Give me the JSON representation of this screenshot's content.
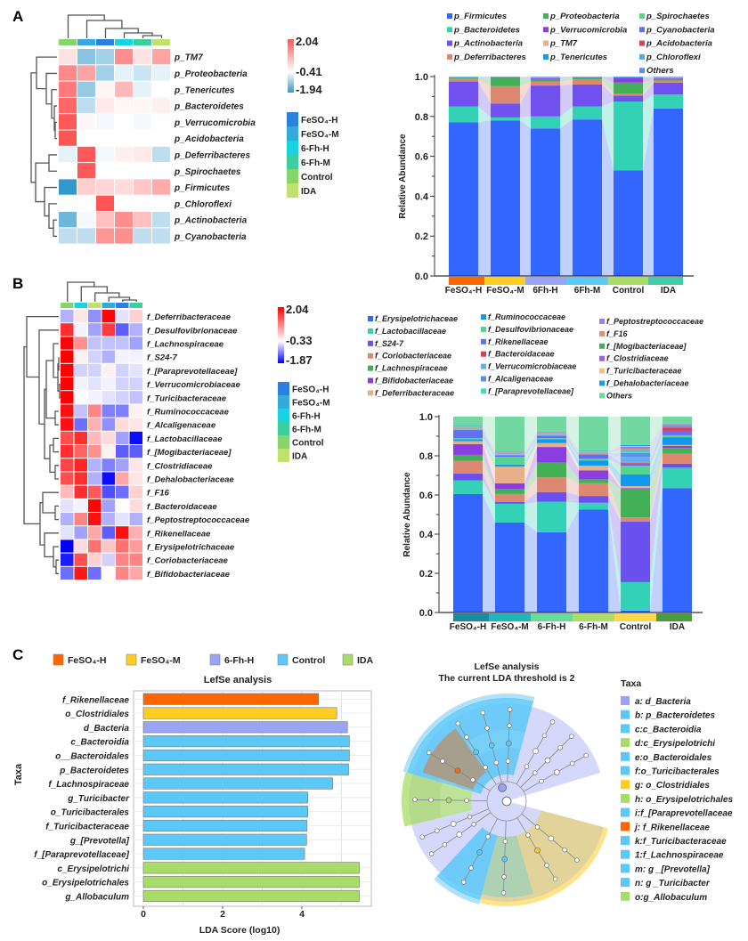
{
  "panel_labels": [
    "A",
    "B",
    "C"
  ],
  "chart_data": [
    {
      "type": "heatmap",
      "panel": "A",
      "columns": [
        "Control",
        "FeSO₄-M",
        "FeSO₄-H",
        "6-Fh-H",
        "6-Fh-M",
        "IDA"
      ],
      "column_colors": [
        "#86d46c",
        "#33aadd",
        "#2b80e0",
        "#18d3e0",
        "#3acf9c",
        "#c1e26a"
      ],
      "rows": [
        "p_TM7",
        "p_Proteobacteria",
        "p_Tenericutes",
        "p_Bacteroidetes",
        "p_Verrucomicrobia",
        "p_Acidobacteria",
        "p_Deferribacteres",
        "p_Spirochaetes",
        "p_Firmicutes",
        "p_Chloroflexi",
        "p_Actinobacteria",
        "p_Cyanobacteria"
      ],
      "values": [
        [
          0.0,
          -1.3,
          -1.1,
          1.2,
          0.0,
          0.9
        ],
        [
          1.3,
          0.9,
          -1.1,
          -0.6,
          -0.8,
          -0.6
        ],
        [
          1.5,
          -1.2,
          -0.3,
          0.6,
          -0.6,
          -0.41
        ],
        [
          1.8,
          -0.9,
          -0.1,
          -0.3,
          -0.3,
          -0.2
        ],
        [
          2.0,
          -0.3,
          -0.5,
          -0.4,
          -0.5,
          -0.4
        ],
        [
          2.04,
          -0.41,
          -0.41,
          -0.41,
          -0.41,
          -0.41
        ],
        [
          -0.6,
          2.0,
          -0.5,
          -0.2,
          -0.1,
          -0.9
        ],
        [
          -0.41,
          2.0,
          -0.41,
          -0.41,
          -0.41,
          -0.41
        ],
        [
          -1.94,
          0.3,
          0.2,
          0.1,
          0.4,
          0.8
        ],
        [
          -0.41,
          -0.41,
          2.04,
          -0.41,
          -0.41,
          -0.41
        ],
        [
          -1.5,
          -0.5,
          0.5,
          1.2,
          0.5,
          -0.9
        ],
        [
          -0.9,
          -0.9,
          1.1,
          1.2,
          -0.9,
          -0.9
        ]
      ],
      "scale": {
        "min": -1.94,
        "mid": -0.41,
        "max": 2.04,
        "low_color": "#3399cc",
        "high_color": "#ff5555",
        "labels": [
          "2.04",
          "-0.41",
          "-1.94"
        ]
      },
      "group_legend": [
        {
          "label": "FeSO₄-H",
          "color": "#2b80e0"
        },
        {
          "label": "FeSO₄-M",
          "color": "#33aadd"
        },
        {
          "label": "6-Fh-H",
          "color": "#18d3e0"
        },
        {
          "label": "6-Fh-M",
          "color": "#3acf9c"
        },
        {
          "label": "Control",
          "color": "#86d46c"
        },
        {
          "label": "IDA",
          "color": "#c1e26a"
        }
      ]
    },
    {
      "type": "bar",
      "stacked": true,
      "panel": "A",
      "categories": [
        "FeSO₄-H",
        "FeSO₄-M",
        "6Fh-H",
        "6Fh-M",
        "Control",
        "IDA"
      ],
      "category_colors": [
        "#ff6600",
        "#ffcc22",
        "#99a4f5",
        "#5bc8f5",
        "#aadd66",
        "#44ccaa"
      ],
      "ylabel": "Relative Abundance",
      "ylim": [
        0,
        1
      ],
      "yticks": [
        "0.0",
        "0.2",
        "0.4",
        "0.6",
        "0.8",
        "1.0"
      ],
      "legend_position": "top",
      "series": [
        {
          "name": "p_Firmicutes",
          "color": "#3366ff",
          "values": [
            0.77,
            0.78,
            0.74,
            0.785,
            0.53,
            0.84
          ]
        },
        {
          "name": "p_Bacteroidetes",
          "color": "#33d1b5",
          "values": [
            0.08,
            0.015,
            0.06,
            0.065,
            0.345,
            0.07
          ]
        },
        {
          "name": "p_Actinobacteria",
          "color": "#7050ee",
          "values": [
            0.125,
            0.07,
            0.155,
            0.11,
            0.03,
            0.06
          ]
        },
        {
          "name": "p_Deferribacteres",
          "color": "#dd8870",
          "values": [
            0.013,
            0.087,
            0.02,
            0.025,
            0.01,
            0.01
          ]
        },
        {
          "name": "p_Proteobacteria",
          "color": "#44b055",
          "values": [
            0.005,
            0.045,
            0.012,
            0.01,
            0.055,
            0.008
          ]
        },
        {
          "name": "p_Verrucomicrobia",
          "color": "#8a3de0",
          "values": [
            0.002,
            0.001,
            0.005,
            0.002,
            0.025,
            0.004
          ]
        },
        {
          "name": "p_TM7",
          "color": "#e8b088",
          "values": [
            0.001,
            0.001,
            0.002,
            0.001,
            0.001,
            0.002
          ]
        },
        {
          "name": "p_Tenericutes",
          "color": "#1199ee",
          "values": [
            0.001,
            0.001,
            0.002,
            0.001,
            0.003,
            0.002
          ]
        },
        {
          "name": "p_Spirochaetes",
          "color": "#55d48f",
          "values": [
            0.001,
            0,
            0.001,
            0,
            0,
            0.001
          ]
        },
        {
          "name": "p_Cyanobacteria",
          "color": "#6070f5",
          "values": [
            0.001,
            0,
            0.001,
            0.001,
            0,
            0.001
          ]
        },
        {
          "name": "p_Acidobacteria",
          "color": "#d84060",
          "values": [
            0,
            0,
            0,
            0,
            0,
            0.001
          ]
        },
        {
          "name": "p_Chloroflexi",
          "color": "#55a8e8",
          "values": [
            0,
            0,
            0,
            0,
            0,
            0
          ]
        },
        {
          "name": "Others",
          "color": "#5b8ef0",
          "values": [
            0.001,
            0,
            0.002,
            0,
            0.001,
            0.001
          ]
        }
      ]
    },
    {
      "type": "heatmap",
      "panel": "B",
      "columns": [
        "Control",
        "6-Fh-H",
        "IDA",
        "FeSO₄-M",
        "FeSO₄-H",
        "6-Fh-M"
      ],
      "column_colors": [
        "#86d46c",
        "#18d3e0",
        "#c1e26a",
        "#33aadd",
        "#2b80e0",
        "#3acf9c"
      ],
      "rows": [
        "f_Deferribacteraceae",
        "f_Desulfovibrionaceae",
        "f_Lachnospiraceae",
        "f_S24-7",
        "f_[Paraprevotellaceae]",
        "f_Verrucomicrobiaceae",
        "f_Turicibacteraceae",
        "f_Ruminococcaceae",
        "f_Alcaligenaceae",
        "f_Lactobacillaceae",
        "f_[Mogibacteriaceae]",
        "f_Clostridiaceae",
        "f_Dehalobacteriaceae",
        "f_F16",
        "f_Bacteroidaceae",
        "f_Peptostreptococcaceae",
        "f_Rikenellaceae",
        "f_Erysipelotrichaceae",
        "f_Coriobacteriaceae",
        "f_Bifidobacteriaceae"
      ],
      "values": [
        [
          -0.8,
          -0.1,
          -1.0,
          2.0,
          -0.5,
          0.1
        ],
        [
          1.6,
          -0.4,
          -0.9,
          1.5,
          -1.3,
          -0.8
        ],
        [
          2.0,
          0.7,
          -0.7,
          -0.7,
          -0.7,
          -0.9
        ],
        [
          2.04,
          -0.2,
          -0.6,
          -0.8,
          -0.4,
          -0.4
        ],
        [
          2.04,
          -0.6,
          -0.6,
          -0.2,
          -0.6,
          -0.5
        ],
        [
          2.04,
          -0.4,
          -0.5,
          -0.4,
          -0.6,
          -0.6
        ],
        [
          2.04,
          -0.3,
          -0.4,
          -0.5,
          -0.6,
          -0.7
        ],
        [
          1.9,
          -0.7,
          0.8,
          -1.1,
          -1.1,
          -0.2
        ],
        [
          1.9,
          -1.2,
          0.4,
          -1.0,
          0.0,
          -0.1
        ],
        [
          1.3,
          1.6,
          0.3,
          0.0,
          -0.9,
          -1.8
        ],
        [
          1.6,
          1.1,
          0.7,
          -0.2,
          -1.3,
          -1.3
        ],
        [
          1.4,
          1.7,
          -0.8,
          -1.1,
          -0.9,
          -0.1
        ],
        [
          1.3,
          1.6,
          -0.8,
          -1.8,
          0.5,
          -0.1
        ],
        [
          0.3,
          1.6,
          1.2,
          -1.4,
          -1.2,
          0.1
        ],
        [
          -0.5,
          -0.4,
          2.0,
          -0.9,
          -0.3,
          0.0
        ],
        [
          -0.8,
          0.8,
          1.9,
          -0.8,
          -0.5,
          -0.8
        ],
        [
          -0.5,
          -0.9,
          0.5,
          -1.3,
          1.9,
          0.4
        ],
        [
          -1.87,
          0.0,
          1.0,
          0.2,
          1.0,
          0.6
        ],
        [
          -1.7,
          1.3,
          0.1,
          -0.6,
          0.8,
          0.8
        ],
        [
          -1.2,
          1.8,
          -1.2,
          -0.3,
          0.8,
          0.5
        ]
      ],
      "scale": {
        "min": -1.87,
        "mid": -0.33,
        "max": 2.04,
        "low_color": "#0000ff",
        "high_color": "#ff0000",
        "labels": [
          "2.04",
          "-0.33",
          "-1.87"
        ]
      },
      "group_legend": [
        {
          "label": "FeSO₄-H",
          "color": "#2b80e0"
        },
        {
          "label": "FeSO₄-M",
          "color": "#33aadd"
        },
        {
          "label": "6-Fh-H",
          "color": "#18d3e0"
        },
        {
          "label": "6-Fh-M",
          "color": "#3acf9c"
        },
        {
          "label": "Control",
          "color": "#86d46c"
        },
        {
          "label": "IDA",
          "color": "#c1e26a"
        }
      ]
    },
    {
      "type": "bar",
      "stacked": true,
      "panel": "B",
      "categories": [
        "FeSO₄-H",
        "FeSO₄-M",
        "6-Fh-H",
        "6-Fh-M",
        "Control",
        "IDA"
      ],
      "category_colors": [
        "#1a8aa0",
        "#1ab8b8",
        "#66dd99",
        "#aae066",
        "#ffd84a",
        "#4a9a40"
      ],
      "ylabel": "Relative Abundance",
      "ylim": [
        0,
        1
      ],
      "yticks": [
        "0.0",
        "0.2",
        "0.4",
        "0.6",
        "0.8",
        "1.0"
      ],
      "legend_position": "top",
      "series": [
        {
          "name": "f_Erysipelotrichaceae",
          "color": "#3366ff",
          "values": [
            0.605,
            0.46,
            0.41,
            0.525,
            0.01,
            0.635
          ]
        },
        {
          "name": "f_Lactobacillaceae",
          "color": "#33d1b5",
          "values": [
            0.07,
            0.095,
            0.155,
            0.035,
            0.145,
            0.105
          ]
        },
        {
          "name": "f_S24-7",
          "color": "#6a50ee",
          "values": [
            0.035,
            0.01,
            0.05,
            0.035,
            0.31,
            0.02
          ]
        },
        {
          "name": "f_Coriobacteriaceae",
          "color": "#dd8870",
          "values": [
            0.065,
            0.04,
            0.075,
            0.065,
            0.02,
            0.05
          ]
        },
        {
          "name": "f_Lachnospiraceae",
          "color": "#44b055",
          "values": [
            0.03,
            0.025,
            0.075,
            0.02,
            0.145,
            0.03
          ]
        },
        {
          "name": "f_Bifidobacteriaceae",
          "color": "#8a3de0",
          "values": [
            0.055,
            0.03,
            0.08,
            0.045,
            0.005,
            0.01
          ]
        },
        {
          "name": "f_Deferribacteraceae",
          "color": "#e8b088",
          "values": [
            0.015,
            0.085,
            0.02,
            0.025,
            0.01,
            0.005
          ]
        },
        {
          "name": "f_Ruminococcaceae",
          "color": "#1199ee",
          "values": [
            0.01,
            0.01,
            0.02,
            0.025,
            0.06,
            0.04
          ]
        },
        {
          "name": "f_Desulfovibrionaceae",
          "color": "#55d48f",
          "values": [
            0.005,
            0.04,
            0.005,
            0.01,
            0.045,
            0.01
          ]
        },
        {
          "name": "f_Rikenellaceae",
          "color": "#6070f5",
          "values": [
            0.04,
            0.005,
            0.01,
            0.02,
            0.01,
            0.02
          ]
        },
        {
          "name": "f_Bacteroidaceae",
          "color": "#d84060",
          "values": [
            0.003,
            0.002,
            0.002,
            0.002,
            0.005,
            0.02
          ]
        },
        {
          "name": "f_Verrucomicrobiaceae",
          "color": "#66b0e8",
          "values": [
            0.003,
            0.002,
            0.002,
            0.002,
            0.03,
            0.005
          ]
        },
        {
          "name": "f_Alcaligenaceae",
          "color": "#5b8ef0",
          "values": [
            0.002,
            0.002,
            0.002,
            0.002,
            0.02,
            0.005
          ]
        },
        {
          "name": "f_[Paraprevotellaceae]",
          "color": "#44dcc0",
          "values": [
            0.002,
            0.002,
            0.002,
            0.002,
            0.01,
            0.002
          ]
        },
        {
          "name": "f_Peptostreptococcaceae",
          "color": "#9a80f0",
          "values": [
            0.002,
            0.002,
            0.002,
            0.002,
            0.005,
            0.002
          ]
        },
        {
          "name": "f_F16",
          "color": "#e09070",
          "values": [
            0.002,
            0.002,
            0.002,
            0.002,
            0.005,
            0.002
          ]
        },
        {
          "name": "f_[Mogibacteriaceae]",
          "color": "#4cab5a",
          "values": [
            0.002,
            0.002,
            0.002,
            0.002,
            0.005,
            0.002
          ]
        },
        {
          "name": "f_Clostridiaceae",
          "color": "#a060e8",
          "values": [
            0.002,
            0.002,
            0.002,
            0.002,
            0.005,
            0.002
          ]
        },
        {
          "name": "f_Turicibacteraceae",
          "color": "#f0c090",
          "values": [
            0.002,
            0.002,
            0.002,
            0.002,
            0.005,
            0.002
          ]
        },
        {
          "name": "f_Dehalobacteriaceae",
          "color": "#1a9cf0",
          "values": [
            0.002,
            0.002,
            0.002,
            0.002,
            0.005,
            0.002
          ]
        },
        {
          "name": "Others",
          "color": "#70d8a0",
          "values": [
            0.048,
            0.18,
            0.08,
            0.175,
            0.145,
            0.031
          ]
        }
      ]
    },
    {
      "type": "bar",
      "orientation": "horizontal",
      "panel": "C",
      "title": "LefSe analysis",
      "xlabel": "LDA Score (log10)",
      "ylabel": "Taxa",
      "xticks": [
        "0",
        "2",
        "4"
      ],
      "grid": true,
      "groups": [
        {
          "name": "FeSO₄-H",
          "color": "#ff6600"
        },
        {
          "name": "FeSO₄-M",
          "color": "#ffcc22"
        },
        {
          "name": "6-Fh-H",
          "color": "#99a4f5"
        },
        {
          "name": "Control",
          "color": "#5bc8f8"
        },
        {
          "name": "IDA",
          "color": "#a8dc66"
        }
      ],
      "categories": [
        "f_Rikenellaceae",
        "o_Clostridiales",
        "d_Bacteria",
        "c_Bacteroidia",
        "o__Bacteroidales",
        "p_Bacteroidetes",
        "f_Lachnospiraceae",
        "g_Turicibacter",
        "o_Turicibacterales",
        "f_Turicibacteraceae",
        "g_[Prevotella]",
        "f_[Paraprevotellaceae]",
        "c_Erysipelotrichi",
        "o_Erysipelotrichales",
        "g_Allobaculum"
      ],
      "values": [
        4.42,
        4.88,
        5.15,
        5.2,
        5.2,
        5.18,
        4.78,
        4.15,
        4.15,
        4.13,
        4.12,
        4.07,
        5.45,
        5.45,
        5.45
      ],
      "value_groups": [
        "FeSO₄-H",
        "FeSO₄-M",
        "6-Fh-H",
        "Control",
        "Control",
        "Control",
        "Control",
        "Control",
        "Control",
        "Control",
        "Control",
        "Control",
        "IDA",
        "IDA",
        "IDA"
      ]
    },
    {
      "type": "cladogram",
      "panel": "C",
      "title": "LefSe analysis",
      "subtitle": "The current LDA threshold is 2",
      "legend_title": "Taxa",
      "legend": [
        {
          "label": "a: d_Bacteria",
          "color": "#99a4f5"
        },
        {
          "label": "b: p_Bacteroidetes",
          "color": "#5bc8f8"
        },
        {
          "label": "c:c_Bacteroidia",
          "color": "#5bc8f8"
        },
        {
          "label": "d:c_Erysipelotrichi",
          "color": "#a8dc66"
        },
        {
          "label": "e:o_Bacteroidales",
          "color": "#5bc8f8"
        },
        {
          "label": "f:o_Turicibacterales",
          "color": "#5bc8f8"
        },
        {
          "label": "g: o_Clostridiales",
          "color": "#ffcc22"
        },
        {
          "label": "h: o_Erysipelotrichales",
          "color": "#a8dc66"
        },
        {
          "label": "i:f_[Paraprevotellaceae",
          "color": "#5bc8f8"
        },
        {
          "label": "j: f_Rikenellaceae",
          "color": "#ff6600"
        },
        {
          "label": "k:f_Turicibacteraceae",
          "color": "#5bc8f8"
        },
        {
          "label": "1:f_Lachnospiraceae",
          "color": "#5bc8f8"
        },
        {
          "label": "m: g _[Prevotella]",
          "color": "#5bc8f8"
        },
        {
          "label": "n: g _Turicibacter",
          "color": "#5bc8f8"
        },
        {
          "label": "o:g_Allobaculum",
          "color": "#a8dc66"
        }
      ]
    }
  ]
}
